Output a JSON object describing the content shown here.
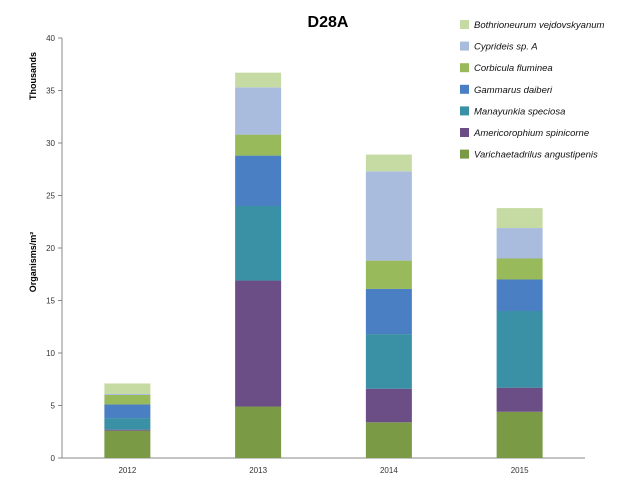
{
  "chart_data": {
    "type": "bar",
    "stacked": true,
    "title": "D28A",
    "ylabel": "Organisms/m²",
    "ylabel_unit": "Thousands",
    "ylim": [
      0,
      40
    ],
    "yticks": [
      0,
      5,
      10,
      15,
      20,
      25,
      30,
      35,
      40
    ],
    "grid": false,
    "legend_position": "right",
    "categories": [
      "2012",
      "2013",
      "2014",
      "2015"
    ],
    "series": [
      {
        "name": "Varichaetadrilus angustipenis",
        "color": "#7a9a45",
        "values": [
          2.6,
          4.9,
          3.4,
          4.4
        ]
      },
      {
        "name": "Americorophium spinicorne",
        "color": "#6b4e86",
        "values": [
          0.1,
          12.0,
          3.2,
          2.3
        ]
      },
      {
        "name": "Manayunkia speciosa",
        "color": "#3a91a5",
        "values": [
          1.1,
          7.1,
          5.2,
          7.3
        ]
      },
      {
        "name": "Gammarus daiberi",
        "color": "#4a7fc4",
        "values": [
          1.3,
          4.8,
          4.3,
          3.0
        ]
      },
      {
        "name": "Corbicula fluminea",
        "color": "#98ba5a",
        "values": [
          0.9,
          2.0,
          2.7,
          2.0
        ]
      },
      {
        "name": "Cyprideis sp. A",
        "color": "#a9bcde",
        "values": [
          0.1,
          4.5,
          8.5,
          2.9
        ]
      },
      {
        "name": "Bothrioneurum vejdovskyanum",
        "color": "#c6dba4",
        "values": [
          1.0,
          1.4,
          1.6,
          1.9
        ]
      }
    ]
  }
}
